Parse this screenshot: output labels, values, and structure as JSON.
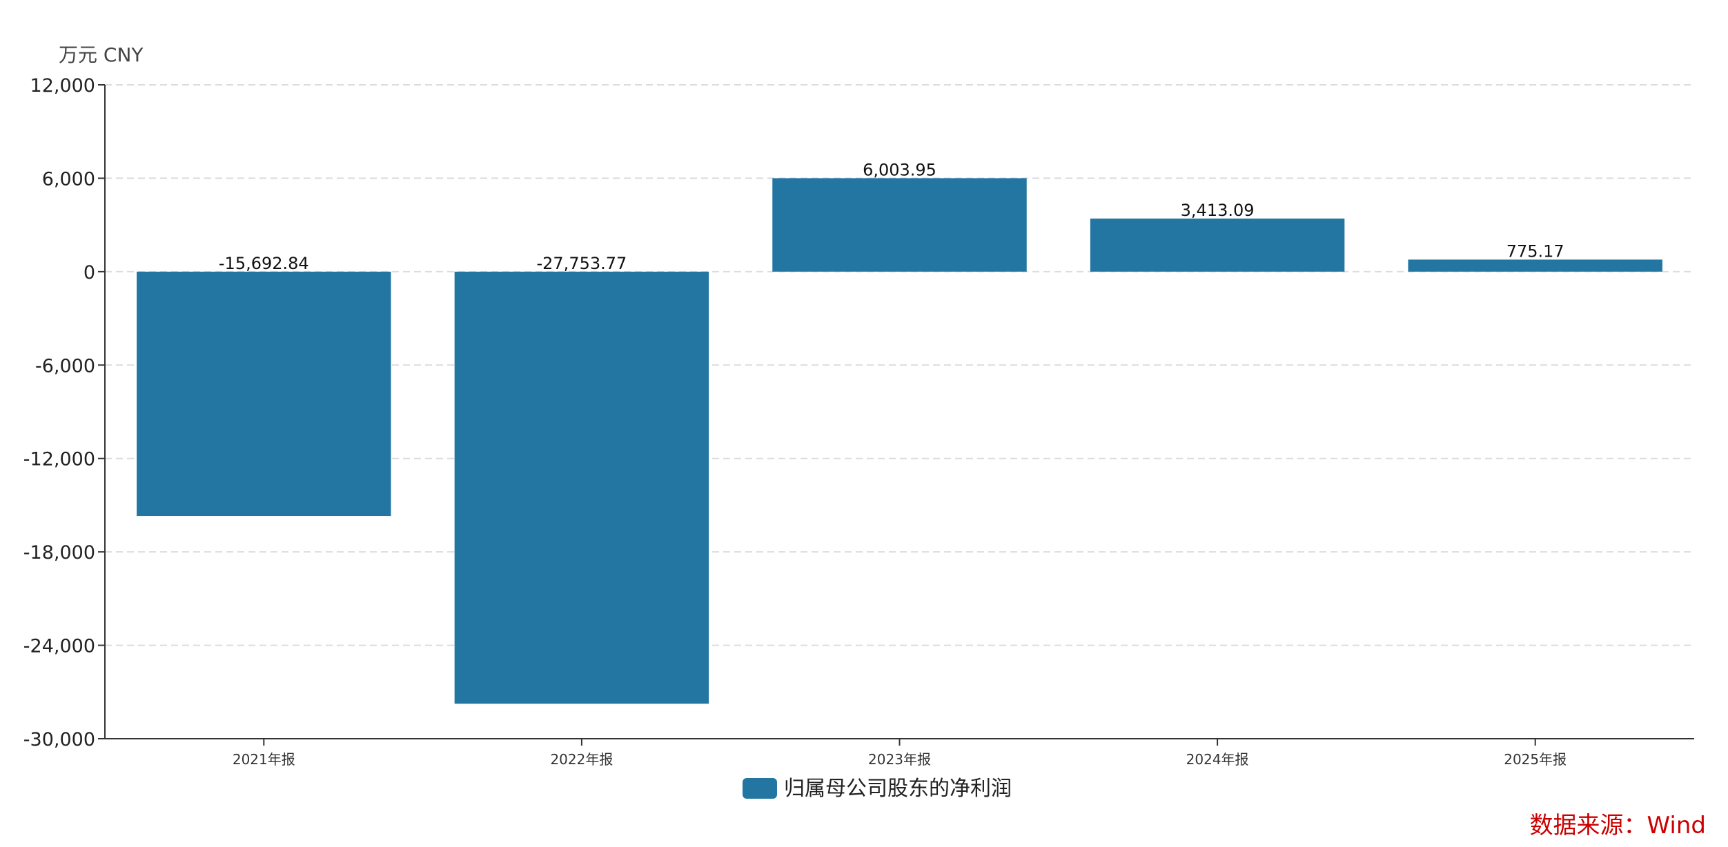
{
  "chart_data": {
    "type": "bar",
    "unit_label": "万元  CNY",
    "categories": [
      "2021年报",
      "2022年报",
      "2023年报",
      "2024年报",
      "2025年报"
    ],
    "series": [
      {
        "name": "归属母公司股东的净利润",
        "values": [
          -15692.84,
          -27753.77,
          6003.95,
          3413.09,
          775.17
        ],
        "labels": [
          "-15,692.84",
          "-27,753.77",
          "6,003.95",
          "3,413.09",
          "775.17"
        ],
        "color": "#2476a2"
      }
    ],
    "yticks": [
      12000,
      6000,
      0,
      -6000,
      -12000,
      -18000,
      -24000,
      -30000
    ],
    "ytick_labels": [
      "12,000",
      "6,000",
      "0",
      "-6,000",
      "-12,000",
      "-18,000",
      "-24,000",
      "-30,000"
    ],
    "ylim": [
      -30000,
      12000
    ],
    "grid": true,
    "legend": "bottom-center",
    "source": "数据来源：Wind",
    "source_color": "#cc0000"
  }
}
